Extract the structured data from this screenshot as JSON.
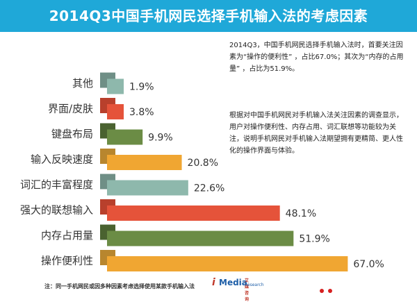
{
  "title": "2014Q3中国手机网民选择手机输入法的考虑因素",
  "note_top": "2014Q3，中国手机网民选择手机输入法时，首要关注因素为“操作的便利性” ，占比67.0%；其次为“内存的占用量” ，占比为51.9%。",
  "note_body": "根据对中国手机网民对手机输入法关注因素的调查显示，用户对操作便利性、内存占用、词汇联想等功能较为关注，说明手机网民对手机输入法期望拥有更精简、更人性化的操作界面与体验。",
  "footnote": "注：同一手机网民或因多种因素考虑选择使用某款手机输入法",
  "brand": {
    "prefix": "i",
    "name": "Media",
    "cn": "艾媒咨询",
    "en": "Research"
  },
  "colors": {
    "title_bg": "#1fa8d8",
    "grey_front": "#8eb8ac",
    "grey_back": "#6f8f86",
    "red_front": "#e5533a",
    "red_back": "#b8402c",
    "green_front": "#6b8c45",
    "green_back": "#4a6230",
    "orange_front": "#f0a632",
    "orange_back": "#b8862e"
  },
  "chart_data": {
    "type": "bar",
    "orientation": "horizontal",
    "title": "2014Q3中国手机网民选择手机输入法的考虑因素",
    "unit": "%",
    "categories": [
      "其他",
      "界面/皮肤",
      "键盘布局",
      "输入反映速度",
      "词汇的丰富程度",
      "强大的联想输入",
      "内存占用量",
      "操作便利性"
    ],
    "values": [
      1.9,
      3.8,
      9.9,
      20.8,
      22.6,
      48.1,
      51.9,
      67.0
    ],
    "value_labels": [
      "1.9%",
      "3.8%",
      "9.9%",
      "20.8%",
      "22.6%",
      "48.1%",
      "51.9%",
      "67.0%"
    ],
    "color_keys": [
      "grey",
      "red",
      "green",
      "orange",
      "grey",
      "red",
      "green",
      "orange"
    ],
    "xlim": [
      0,
      70
    ]
  }
}
